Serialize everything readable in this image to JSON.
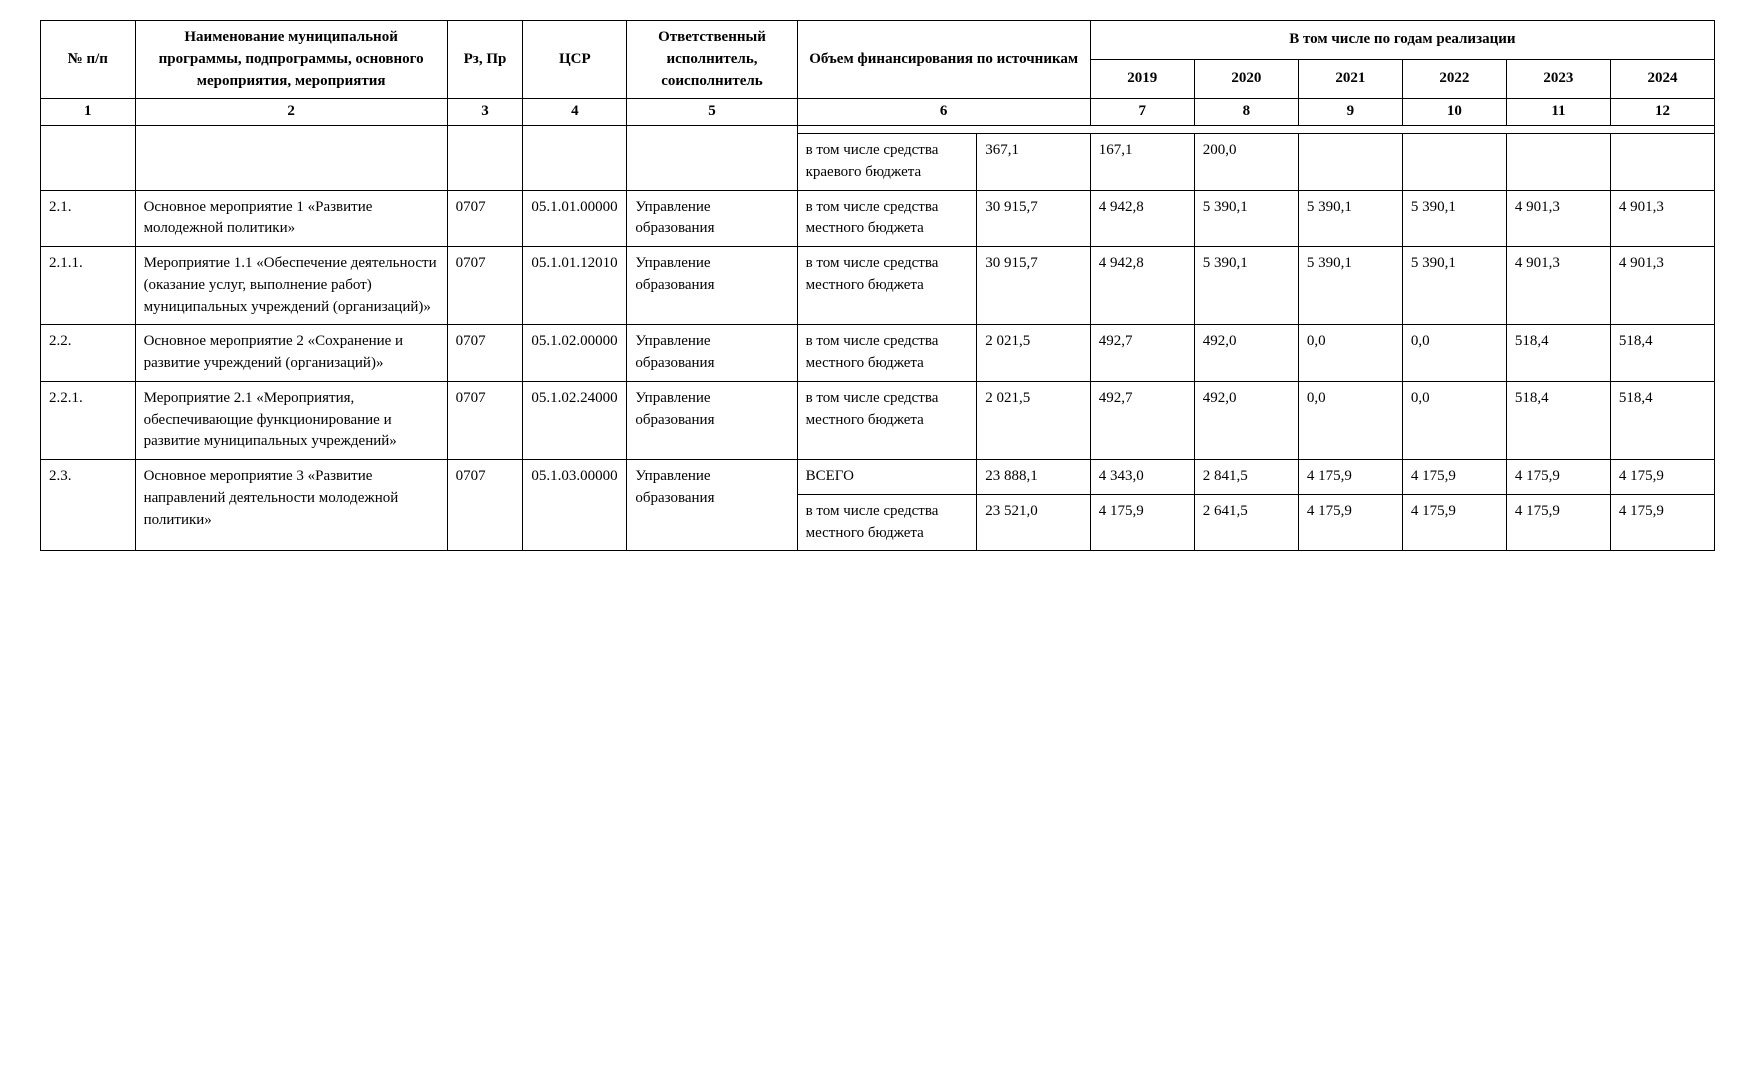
{
  "headers": {
    "col1": "№ п/п",
    "col2": "Наименование муниципальной программы, подпрограммы, основного мероприятия, мероприятия",
    "col3": "Рз, Пр",
    "col4": "ЦСР",
    "col5": "Ответственный исполнитель, соисполнитель",
    "col6": "Объем финансирования по источникам",
    "col_years": "В том числе по годам реализации",
    "y2019": "2019",
    "y2020": "2020",
    "y2021": "2021",
    "y2022": "2022",
    "y2023": "2023",
    "y2024": "2024"
  },
  "numrow": {
    "c1": "1",
    "c2": "2",
    "c3": "3",
    "c4": "4",
    "c5": "5",
    "c6": "6",
    "c7": "7",
    "c8": "8",
    "c9": "9",
    "c10": "10",
    "c11": "11",
    "c12": "12"
  },
  "rows": {
    "r0": {
      "src": "в том числе средства краевого бюджета",
      "total": "367,1",
      "y2019": "167,1",
      "y2020": "200,0",
      "y2021": "",
      "y2022": "",
      "y2023": "",
      "y2024": ""
    },
    "r21": {
      "num": "2.1.",
      "name": "Основное мероприятие 1 «Развитие молодежной политики»",
      "rzpr": "0707",
      "csr": "05.1.01.00000",
      "exec": "Управление образования",
      "src": "в том числе средства местного бюджета",
      "total": "30 915,7",
      "y2019": "4 942,8",
      "y2020": "5 390,1",
      "y2021": "5 390,1",
      "y2022": "5 390,1",
      "y2023": "4 901,3",
      "y2024": "4 901,3"
    },
    "r211": {
      "num": "2.1.1.",
      "name": "Мероприятие 1.1 «Обеспечение деятельности (оказание услуг, выполнение работ) муниципальных учреждений (организаций)»",
      "rzpr": "0707",
      "csr": "05.1.01.12010",
      "exec": "Управление образования",
      "src": "в том числе средства местного бюджета",
      "total": "30 915,7",
      "y2019": "4 942,8",
      "y2020": "5 390,1",
      "y2021": "5 390,1",
      "y2022": "5 390,1",
      "y2023": "4 901,3",
      "y2024": "4 901,3"
    },
    "r22": {
      "num": "2.2.",
      "name": "Основное мероприятие 2 «Сохранение и развитие учреждений (организаций)»",
      "rzpr": "0707",
      "csr": "05.1.02.00000",
      "exec": "Управление образования",
      "src": "в том числе средства местного бюджета",
      "total": "2 021,5",
      "y2019": "492,7",
      "y2020": "492,0",
      "y2021": "0,0",
      "y2022": "0,0",
      "y2023": "518,4",
      "y2024": "518,4"
    },
    "r221": {
      "num": "2.2.1.",
      "name": "Мероприятие 2.1 «Мероприятия, обеспечивающие функционирование и развитие муниципальных учреждений»",
      "rzpr": "0707",
      "csr": "05.1.02.24000",
      "exec": "Управление образования",
      "src": "в том числе средства местного бюджета",
      "total": "2 021,5",
      "y2019": "492,7",
      "y2020": "492,0",
      "y2021": "0,0",
      "y2022": "0,0",
      "y2023": "518,4",
      "y2024": "518,4"
    },
    "r23": {
      "num": "2.3.",
      "name": "Основное мероприятие 3 «Развитие направлений деятельности молодежной политики»",
      "rzpr": "0707",
      "csr": "05.1.03.00000",
      "exec": "Управление образования",
      "line1": {
        "src": "ВСЕГО",
        "total": "23 888,1",
        "y2019": "4 343,0",
        "y2020": "2 841,5",
        "y2021": "4 175,9",
        "y2022": "4 175,9",
        "y2023": "4 175,9",
        "y2024": "4 175,9"
      },
      "line2": {
        "src": "в том числе средства местного бюджета",
        "total": "23 521,0",
        "y2019": "4 175,9",
        "y2020": "2 641,5",
        "y2021": "4 175,9",
        "y2022": "4 175,9",
        "y2023": "4 175,9",
        "y2024": "4 175,9"
      }
    }
  },
  "style": {
    "border_color": "#000000",
    "background": "#ffffff",
    "font_family": "Times New Roman",
    "base_font_size_pt": 11,
    "header_bold": true
  }
}
